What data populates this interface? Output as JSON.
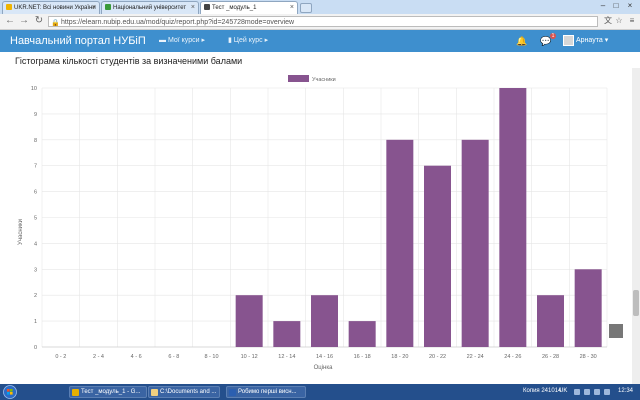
{
  "browser": {
    "tabs": [
      {
        "label": "UKR.NET: Всі новини України",
        "favicon_color": "#f0b400"
      },
      {
        "label": "Національний університет",
        "favicon_color": "#3a9a3a"
      },
      {
        "label": "Тест _модуль_1",
        "favicon_color": "#444444"
      }
    ],
    "url": "https://elearn.nubip.edu.ua/mod/quiz/report.php?id=245728mode=overview"
  },
  "site": {
    "brand": "Навчальний портал НУБіП",
    "nav": [
      {
        "label": "Мої курси ▸",
        "icon": "courses-icon"
      },
      {
        "label": "Цей курс ▸",
        "icon": "course-icon"
      }
    ],
    "message_badge": "1",
    "user_name": "Арнаута ▾"
  },
  "page": {
    "title": "Гістограма кількості студентів за визначеними балами"
  },
  "chart_data": {
    "type": "bar",
    "categories": [
      "0 - 2",
      "2 - 4",
      "4 - 6",
      "6 - 8",
      "8 - 10",
      "10 - 12",
      "12 - 14",
      "14 - 16",
      "16 - 18",
      "18 - 20",
      "20 - 22",
      "22 - 24",
      "24 - 26",
      "26 - 28",
      "28 - 30"
    ],
    "series": [
      {
        "name": "Учасники",
        "values": [
          0,
          0,
          0,
          0,
          0,
          2,
          1,
          2,
          1,
          8,
          7,
          8,
          10,
          2,
          3
        ],
        "color": "#87548f"
      }
    ],
    "xlabel": "Оцінка",
    "ylabel": "Учасники",
    "ylim": [
      0,
      10
    ],
    "yticks": [
      0,
      1,
      2,
      3,
      4,
      5,
      6,
      7,
      8,
      9,
      10
    ],
    "grid": true,
    "legend": "top-center"
  },
  "taskbar": {
    "items": [
      {
        "label": "Тест _модуль_1 - G...",
        "icon_color": "#e6b000"
      },
      {
        "label": "C:\\Documents and ...",
        "icon_color": "#f0d080"
      },
      {
        "label": "Робимо перші висн...",
        "icon_color": "#2b5fb0"
      }
    ],
    "win_version": "Копия 241014",
    "lang": "UK",
    "time": "12:34"
  }
}
